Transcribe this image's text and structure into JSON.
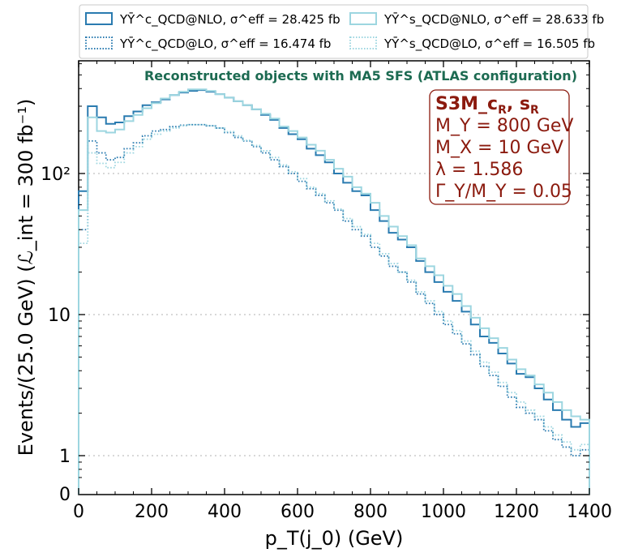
{
  "chart_data": {
    "type": "line",
    "subtype": "step-histogram",
    "title": "Reconstructed objects with MA5 SFS (ATLAS configuration)",
    "xlabel": "p_T(j_0) (GeV)",
    "ylabel": "Events/(25.0 GeV) (ℒ_int = 300 fb⁻¹)",
    "xlim": [
      0,
      1400
    ],
    "yscale": "log",
    "ylim": [
      0.6,
      600
    ],
    "bin_width": 25,
    "x_ticks": [
      "0",
      "200",
      "400",
      "600",
      "800",
      "1000",
      "1200",
      "1400"
    ],
    "y_ticks": [
      "0",
      "1",
      "10",
      "10²"
    ],
    "legend_position": "top (above plot)",
    "colors": {
      "dark": "#2a7bb0",
      "light": "#9dd6e0",
      "title": "#1d6b52",
      "info": "#8b1a0e"
    },
    "info_box": {
      "line1": "S3M_c",
      "line1_sub": "R",
      "line1_sep": ", s",
      "line1_sub2": "R",
      "line2": "M_Y = 800 GeV",
      "line3": "M_X = 10 GeV",
      "line4": "λ = 1.586",
      "line5": "Γ_Y/M_Y = 0.05"
    },
    "series": [
      {
        "name": "YȲ^c_QCD@NLO",
        "sigma": "σ^eff = 28.425 fb",
        "style": "solid",
        "color": "#2a7bb0",
        "values": [
          75,
          300,
          250,
          225,
          230,
          255,
          275,
          305,
          320,
          335,
          360,
          375,
          385,
          390,
          380,
          365,
          345,
          325,
          305,
          285,
          260,
          240,
          210,
          190,
          175,
          150,
          135,
          120,
          100,
          86,
          75,
          70,
          55,
          46,
          38,
          34,
          30,
          24,
          20,
          17,
          14.5,
          12.5,
          10.5,
          8.5,
          7,
          6.3,
          5.3,
          4.5,
          3.8,
          3.6,
          3,
          2.5,
          2.1,
          1.8,
          1.6,
          1.7
        ]
      },
      {
        "name": "YȲ^c_QCD@LO",
        "sigma": "σ^eff = 16.474 fb",
        "style": "dotted",
        "color": "#2a7bb0",
        "values": [
          40,
          170,
          140,
          125,
          130,
          150,
          165,
          185,
          200,
          205,
          215,
          220,
          222,
          222,
          218,
          210,
          195,
          180,
          170,
          155,
          140,
          125,
          112,
          100,
          88,
          78,
          70,
          62,
          55,
          46,
          40,
          36,
          30,
          26,
          22,
          20,
          17,
          14,
          12,
          10,
          8.5,
          7.3,
          6.2,
          5.2,
          4.3,
          3.7,
          3.1,
          2.6,
          2.2,
          2,
          1.8,
          1.5,
          1.3,
          1.15,
          1,
          1.1
        ]
      },
      {
        "name": "YȲ^s_QCD@NLO",
        "sigma": "σ^eff = 28.633 fb",
        "style": "solid",
        "color": "#9dd6e0",
        "values": [
          55,
          250,
          200,
          195,
          205,
          235,
          260,
          290,
          315,
          340,
          360,
          380,
          395,
          395,
          385,
          365,
          345,
          325,
          305,
          285,
          265,
          245,
          215,
          200,
          180,
          160,
          145,
          125,
          108,
          95,
          80,
          72,
          62,
          50,
          42,
          36,
          31,
          25,
          22,
          19,
          16,
          14,
          11.5,
          9.5,
          8,
          6.8,
          5.8,
          4.8,
          4.1,
          3.7,
          3.2,
          2.8,
          2.4,
          2.1,
          1.9,
          1.8
        ]
      },
      {
        "name": "YȲ^s_QCD@LO",
        "sigma": "σ^eff = 16.505 fb",
        "style": "dotted",
        "color": "#9dd6e0",
        "values": [
          32,
          140,
          118,
          110,
          120,
          140,
          155,
          175,
          190,
          200,
          210,
          218,
          222,
          222,
          218,
          210,
          198,
          185,
          172,
          158,
          145,
          130,
          115,
          103,
          92,
          80,
          72,
          64,
          56,
          48,
          42,
          37,
          32,
          27,
          23,
          20,
          17.5,
          14.5,
          12.5,
          10.5,
          9,
          7.7,
          6.5,
          5.5,
          4.6,
          3.9,
          3.3,
          2.8,
          2.4,
          2.1,
          1.9,
          1.6,
          1.4,
          1.25,
          1.1,
          1.2
        ]
      }
    ]
  }
}
